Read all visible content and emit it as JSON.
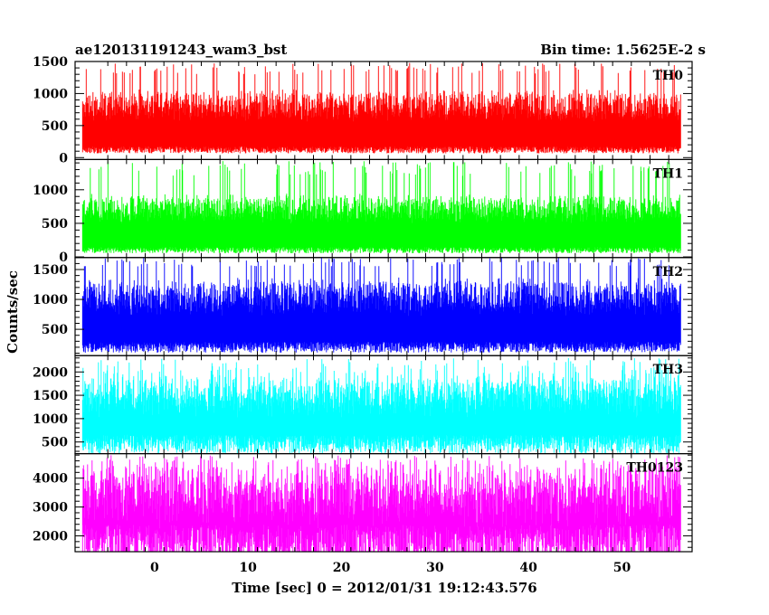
{
  "header": {
    "title": "ae120131191243_wam3_bst",
    "bin_time": "Bin time: 1.5625E-2 s"
  },
  "chart_data": {
    "type": "line",
    "title": "ae120131191243_wam3_bst",
    "xlabel": "Time [sec] 0 = 2012/01/31 19:12:43.576",
    "ylabel": "Counts/sec",
    "xlim": [
      -8.5,
      57.5
    ],
    "x_data_range": [
      -7.7,
      56.3
    ],
    "x_ticks": [
      0,
      10,
      20,
      30,
      40,
      50
    ],
    "x_tick_labels": [
      "0",
      "10",
      "20",
      "30",
      "40",
      "50"
    ],
    "grid": false,
    "panels": [
      {
        "label": "TH0",
        "color": "#ff0000",
        "ylim": [
          -30,
          1500
        ],
        "y_ticks": [
          0,
          500,
          1000,
          1500
        ],
        "y_tick_labels": [
          "0",
          "500",
          "1000",
          "1500"
        ],
        "baseline": 120,
        "spread": 900,
        "typical_max": 1300,
        "peak_max": 1480
      },
      {
        "label": "TH1",
        "color": "#00ff00",
        "ylim": [
          -10,
          1450
        ],
        "y_ticks": [
          0,
          500,
          1000
        ],
        "y_tick_labels": [
          "0",
          "500",
          "1000"
        ],
        "baseline": 100,
        "spread": 800,
        "typical_max": 1200,
        "peak_max": 1430
      },
      {
        "label": "TH2",
        "color": "#0000ff",
        "ylim": [
          60,
          1700
        ],
        "y_ticks": [
          500,
          1000,
          1500
        ],
        "y_tick_labels": [
          "500",
          "1000",
          "1500"
        ],
        "baseline": 200,
        "spread": 1100,
        "typical_max": 1550,
        "peak_max": 1700
      },
      {
        "label": "TH3",
        "color": "#00ffff",
        "ylim": [
          250,
          2350
        ],
        "y_ticks": [
          500,
          1000,
          1500,
          2000
        ],
        "y_tick_labels": [
          "500",
          "1000",
          "1500",
          "2000"
        ],
        "baseline": 450,
        "spread": 1400,
        "typical_max": 2000,
        "peak_max": 2300
      },
      {
        "label": "TH0123",
        "color": "#ff00ff",
        "ylim": [
          1450,
          4850
        ],
        "y_ticks": [
          2000,
          3000,
          4000
        ],
        "y_tick_labels": [
          "2000",
          "3000",
          "4000"
        ],
        "baseline": 1650,
        "spread": 2400,
        "typical_max": 4300,
        "peak_max": 4800
      }
    ]
  }
}
